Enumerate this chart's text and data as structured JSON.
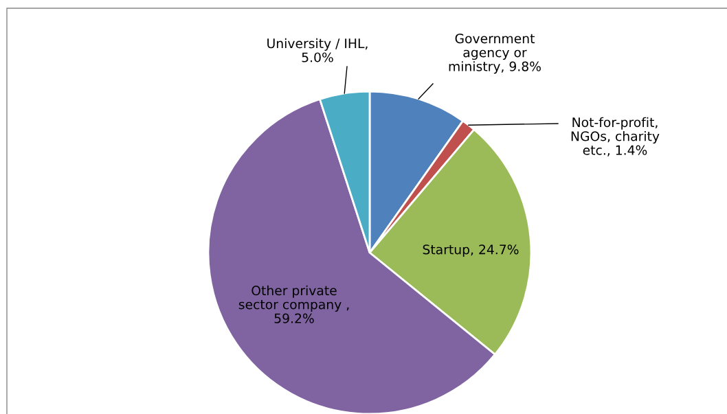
{
  "chart_data": {
    "type": "pie",
    "categories": [
      "Government\nagency or\nministry, 9.8%",
      "Not-for-profit,\nNGOs, charity\netc., 1.4%",
      "Startup, 24.7%",
      "Other private\nsector company ,\n59.2%",
      "University / IHL,\n5.0%"
    ],
    "values": [
      9.8,
      1.4,
      24.7,
      59.2,
      5.0
    ],
    "colors": [
      "#4f81bd",
      "#c0504d",
      "#9bbb59",
      "#8064a2",
      "#4bacc6"
    ],
    "legend": false
  }
}
